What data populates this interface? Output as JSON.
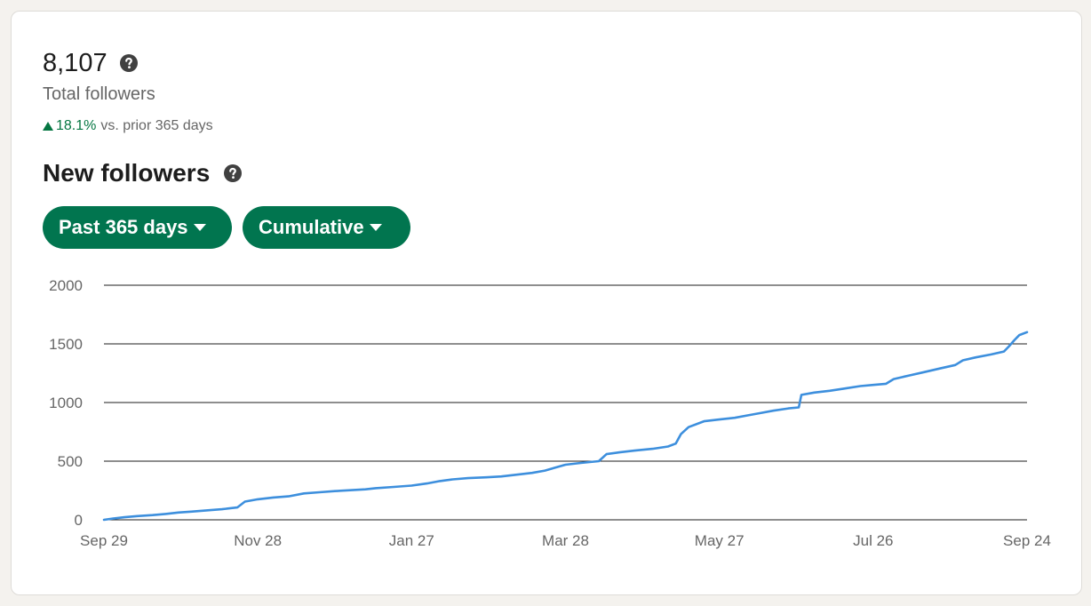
{
  "summary": {
    "total_value": "8,107",
    "total_label": "Total followers",
    "change_value": "18.1%",
    "change_text": "vs. prior 365 days"
  },
  "section": {
    "title": "New followers"
  },
  "filters": {
    "range_label": "Past 365 days",
    "mode_label": "Cumulative"
  },
  "icons": {
    "help": "question-circle-icon",
    "trend": "triangle-up-icon",
    "dropdown": "caret-down-icon"
  },
  "colors": {
    "accent": "#01754f",
    "positive": "#057642",
    "line": "#3d8fdd"
  },
  "chart_data": {
    "type": "line",
    "title": "",
    "xlabel": "",
    "ylabel": "",
    "grid": true,
    "ylim": [
      0,
      2000
    ],
    "yticks": [
      "2000",
      "1500",
      "1000",
      "500",
      "0"
    ],
    "ytick_values": [
      2000,
      1500,
      1000,
      500,
      0
    ],
    "xticks": [
      "Sep 29",
      "Nov 28",
      "Jan 27",
      "Mar 28",
      "May 27",
      "Jul 26",
      "Sep 24"
    ],
    "x_start": "Sep 29",
    "x_end": "Sep 24",
    "series": [
      {
        "name": "",
        "points": [
          [
            "Sep 29",
            0
          ],
          [
            "Oct 3",
            12
          ],
          [
            "Oct 7",
            22
          ],
          [
            "Oct 12",
            32
          ],
          [
            "Oct 18",
            40
          ],
          [
            "Oct 23",
            50
          ],
          [
            "Oct 28",
            62
          ],
          [
            "Nov 2",
            70
          ],
          [
            "Nov 8",
            80
          ],
          [
            "Nov 14",
            90
          ],
          [
            "Nov 20",
            105
          ],
          [
            "Nov 23",
            155
          ],
          [
            "Nov 28",
            175
          ],
          [
            "Dec 4",
            190
          ],
          [
            "Dec 10",
            200
          ],
          [
            "Dec 16",
            225
          ],
          [
            "Dec 22",
            235
          ],
          [
            "Dec 28",
            245
          ],
          [
            "Jan 3",
            252
          ],
          [
            "Jan 9",
            260
          ],
          [
            "Jan 13",
            270
          ],
          [
            "Jan 20",
            280
          ],
          [
            "Jan 27",
            292
          ],
          [
            "Feb 2",
            310
          ],
          [
            "Feb 7",
            330
          ],
          [
            "Feb 12",
            345
          ],
          [
            "Feb 18",
            355
          ],
          [
            "Feb 25",
            362
          ],
          [
            "Mar 3",
            370
          ],
          [
            "Mar 9",
            385
          ],
          [
            "Mar 15",
            400
          ],
          [
            "Mar 20",
            420
          ],
          [
            "Mar 24",
            445
          ],
          [
            "Mar 28",
            470
          ],
          [
            "Apr 3",
            485
          ],
          [
            "Apr 10",
            500
          ],
          [
            "Apr 13",
            560
          ],
          [
            "Apr 18",
            575
          ],
          [
            "Apr 24",
            590
          ],
          [
            "May 1",
            605
          ],
          [
            "May 7",
            625
          ],
          [
            "May 10",
            650
          ],
          [
            "May 12",
            730
          ],
          [
            "May 15",
            790
          ],
          [
            "May 21",
            840
          ],
          [
            "May 27",
            855
          ],
          [
            "Jun 2",
            870
          ],
          [
            "Jun 7",
            890
          ],
          [
            "Jun 12",
            910
          ],
          [
            "Jun 17",
            930
          ],
          [
            "Jun 23",
            950
          ],
          [
            "Jun 27",
            958
          ],
          [
            "Jun 28",
            1065
          ],
          [
            "Jul 3",
            1085
          ],
          [
            "Jul 9",
            1100
          ],
          [
            "Jul 15",
            1120
          ],
          [
            "Jul 21",
            1140
          ],
          [
            "Jul 26",
            1150
          ],
          [
            "Jul 31",
            1160
          ],
          [
            "Aug 3",
            1200
          ],
          [
            "Aug 9",
            1230
          ],
          [
            "Aug 15",
            1260
          ],
          [
            "Aug 21",
            1290
          ],
          [
            "Aug 27",
            1320
          ],
          [
            "Aug 30",
            1360
          ],
          [
            "Sep 4",
            1385
          ],
          [
            "Sep 10",
            1410
          ],
          [
            "Sep 15",
            1435
          ],
          [
            "Sep 17",
            1480
          ],
          [
            "Sep 19",
            1530
          ],
          [
            "Sep 21",
            1575
          ],
          [
            "Sep 24",
            1600
          ]
        ]
      }
    ]
  }
}
